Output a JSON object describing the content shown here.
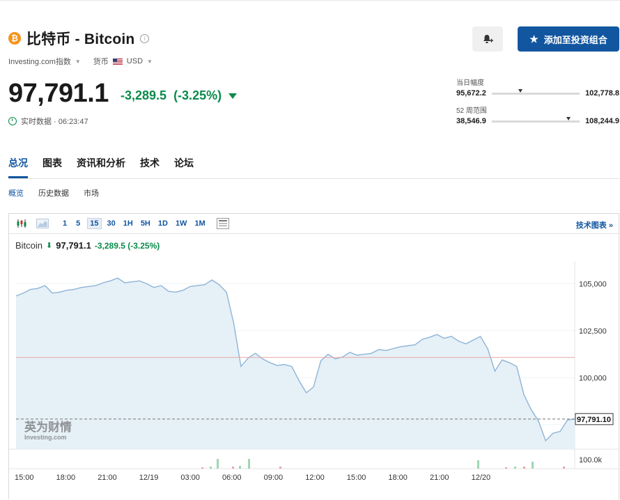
{
  "header": {
    "title": "比特币 - Bitcoin",
    "coin_symbol": "₿",
    "index_label": "Investing.com指数",
    "currency_label": "货币",
    "currency_value": "USD",
    "add_button_label": "添加至投资组合"
  },
  "quote": {
    "price": "97,791.1",
    "change": "-3,289.5",
    "change_pct": "(-3.25%)",
    "realtime_label": "实时数据 · 06:23:47"
  },
  "ranges": {
    "day_label": "当日幅度",
    "day_low": "95,672.2",
    "day_high": "102,778.8",
    "day_position": 0.3,
    "week52_label": "52 周范围",
    "week52_low": "38,546.9",
    "week52_high": "108,244.9",
    "week52_position": 0.85
  },
  "tabs": [
    "总况",
    "图表",
    "资讯和分析",
    "技术",
    "论坛"
  ],
  "subtabs": [
    "概览",
    "历史数据",
    "市场"
  ],
  "toolbar": {
    "intervals": [
      "1",
      "5",
      "15",
      "30",
      "1H",
      "5H",
      "1D",
      "1W",
      "1M"
    ],
    "selected_interval": "15",
    "tech_chart_label": "技术图表 »"
  },
  "legend": {
    "name": "Bitcoin",
    "price": "97,791.1",
    "change": "-3,289.5 (-3.25%)"
  },
  "watermark": {
    "cn": "英为财情",
    "en": "Investing.com"
  },
  "colors": {
    "accent": "#1256a0",
    "positive": "#0a8a4b",
    "line": "#8db4d6",
    "area": "#e6f0f7"
  },
  "chart_data": {
    "type": "area",
    "y_ticks": [
      "105,000",
      "102,500",
      "100,000"
    ],
    "ylim": [
      96200,
      106200
    ],
    "x_ticks": [
      "15:00",
      "18:00",
      "21:00",
      "12/19",
      "03:00",
      "06:00",
      "09:00",
      "12:00",
      "15:00",
      "18:00",
      "21:00",
      "12/20"
    ],
    "last_price_label": "97,791.10",
    "prev_close": 101080.6,
    "volume_axis_label": "100.0k",
    "series": [
      {
        "values": [
          104350,
          104500,
          104700,
          104750,
          104900,
          104500,
          104550,
          104650,
          104700,
          104800,
          104850,
          104900,
          105050,
          105150,
          105300,
          105050,
          105100,
          105150,
          105000,
          104800,
          104900,
          104600,
          104550,
          104650,
          104850,
          104900,
          104950,
          105200,
          104950,
          104550,
          102900,
          100600,
          101050,
          101300,
          101000,
          100800,
          100650,
          100700,
          100600,
          99850,
          99200,
          99500,
          100900,
          101250,
          101000,
          101100,
          101350,
          101200,
          101250,
          101300,
          101500,
          101450,
          101550,
          101650,
          101700,
          101750,
          102050,
          102150,
          102300,
          102100,
          102200,
          101950,
          101800,
          102000,
          102200,
          101550,
          100350,
          100950,
          100800,
          100600,
          99100,
          98300,
          97700,
          96650,
          97050,
          97150,
          97750,
          97800
        ]
      }
    ]
  }
}
